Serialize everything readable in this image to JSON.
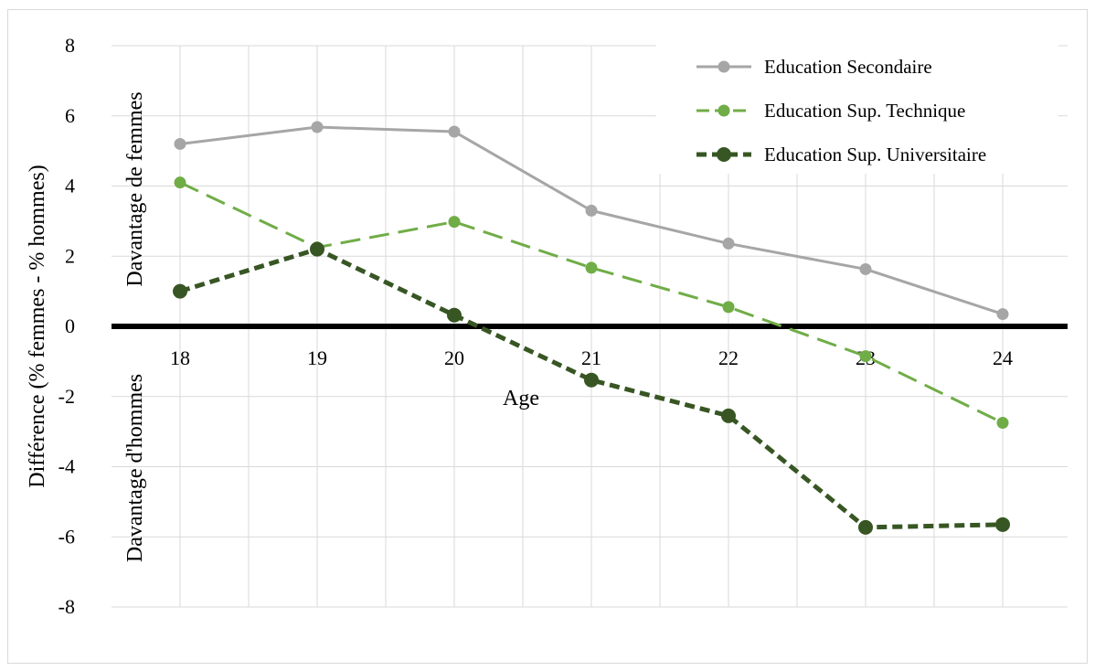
{
  "chart_data": {
    "type": "line",
    "title": "",
    "xlabel": "Age",
    "ylabel": "Différence (% femmes - % hommes)",
    "x": [
      18,
      19,
      20,
      21,
      22,
      23,
      24
    ],
    "ylim": [
      -8,
      8
    ],
    "yticks": [
      -8,
      -6,
      -4,
      -2,
      0,
      2,
      4,
      6,
      8
    ],
    "grid": true,
    "legend_position": "top-right",
    "annotations": {
      "upper": "Davantage de femmes",
      "lower": "Davantage d'hommes"
    },
    "series": [
      {
        "name": "Education Secondaire",
        "values": [
          5.2,
          5.68,
          5.55,
          3.3,
          2.36,
          1.63,
          0.35
        ],
        "color": "#a6a6a6",
        "style": "solid"
      },
      {
        "name": "Education Sup. Technique",
        "values": [
          4.1,
          2.25,
          2.98,
          1.67,
          0.55,
          -0.85,
          -2.75
        ],
        "color": "#70ad47",
        "style": "dashed"
      },
      {
        "name": "Education Sup. Universitaire",
        "values": [
          1.0,
          2.2,
          0.32,
          -1.53,
          -2.55,
          -5.73,
          -5.65
        ],
        "color": "#375623",
        "style": "dotted"
      }
    ]
  }
}
